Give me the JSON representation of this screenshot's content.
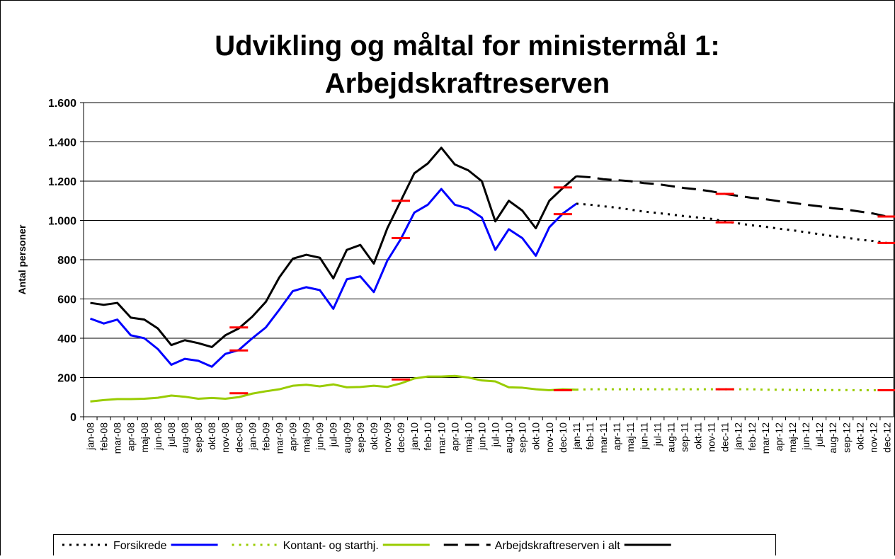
{
  "chart_data": {
    "type": "line",
    "title": [
      "Udvikling og måltal for ministermål 1:",
      "Arbejdskraftreserven"
    ],
    "y_label": "Antal personer",
    "categories": [
      "jan-08",
      "feb-08",
      "mar-08",
      "apr-08",
      "maj-08",
      "jun-08",
      "jul-08",
      "aug-08",
      "sep-08",
      "okt-08",
      "nov-08",
      "dec-08",
      "jan-09",
      "feb-09",
      "mar-09",
      "apr-09",
      "maj-09",
      "jun-09",
      "jul-09",
      "aug-09",
      "sep-09",
      "okt-09",
      "nov-09",
      "dec-09",
      "jan-10",
      "feb-10",
      "mar-10",
      "apr-10",
      "maj-10",
      "jun-10",
      "jul-10",
      "aug-10",
      "sep-10",
      "okt-10",
      "nov-10",
      "dec-10",
      "jan-11",
      "feb-11",
      "mar-11",
      "apr-11",
      "maj-11",
      "jun-11",
      "jul-11",
      "aug-11",
      "sep-11",
      "okt-11",
      "nov-11",
      "dec-11",
      "jan-12",
      "feb-12",
      "mar-12",
      "apr-12",
      "maj-12",
      "jun-12",
      "jul-12",
      "aug-12",
      "sep-12",
      "okt-12",
      "nov-12",
      "dec-12"
    ],
    "ylim": [
      0,
      1600
    ],
    "yticks": [
      0,
      200,
      400,
      600,
      800,
      {
        "value": 1000,
        "label": "1.000"
      },
      {
        "value": 1200,
        "label": "1.200"
      },
      {
        "value": 1400,
        "label": "1.400"
      },
      {
        "value": 1600,
        "label": "1.600"
      }
    ],
    "grid": true,
    "legend": "bottom",
    "series": [
      {
        "name": "Forsikrede",
        "color": "#000000",
        "dash": "dotted",
        "values": [
          null,
          null,
          null,
          null,
          null,
          null,
          null,
          null,
          null,
          null,
          null,
          null,
          null,
          null,
          null,
          null,
          null,
          null,
          null,
          null,
          null,
          null,
          null,
          null,
          null,
          null,
          null,
          null,
          null,
          null,
          null,
          null,
          null,
          null,
          null,
          null,
          1085,
          1080,
          1072,
          1065,
          1055,
          1045,
          1038,
          1030,
          1022,
          1015,
          1008,
          995,
          985,
          975,
          968,
          958,
          950,
          940,
          930,
          920,
          912,
          902,
          895,
          885
        ]
      },
      {
        "color": "#0000ff",
        "dash": "solid",
        "values": [
          500,
          475,
          495,
          415,
          400,
          345,
          265,
          295,
          285,
          255,
          320,
          340,
          400,
          455,
          545,
          640,
          660,
          645,
          550,
          700,
          715,
          635,
          795,
          905,
          1040,
          1080,
          1160,
          1080,
          1060,
          1015,
          850,
          955,
          910,
          820,
          965,
          1035,
          1085,
          null,
          null,
          null,
          null,
          null,
          null,
          null,
          null,
          null,
          null,
          null,
          null,
          null,
          null,
          null,
          null,
          null,
          null,
          null,
          null,
          null,
          null,
          null
        ]
      },
      {
        "name": "Kontant- og starthj.",
        "color": "#99cc00",
        "dash": "dotted",
        "values": [
          null,
          null,
          null,
          null,
          null,
          null,
          null,
          null,
          null,
          null,
          null,
          null,
          null,
          null,
          null,
          null,
          null,
          null,
          null,
          null,
          null,
          null,
          null,
          null,
          null,
          null,
          null,
          null,
          null,
          null,
          null,
          null,
          null,
          null,
          null,
          null,
          138,
          140,
          140,
          140,
          140,
          140,
          140,
          140,
          140,
          140,
          140,
          140,
          140,
          140,
          138,
          138,
          137,
          137,
          136,
          136,
          136,
          135,
          135,
          135
        ]
      },
      {
        "color": "#99cc00",
        "dash": "solid",
        "values": [
          78,
          85,
          90,
          90,
          92,
          97,
          108,
          102,
          92,
          96,
          92,
          100,
          118,
          130,
          140,
          158,
          163,
          155,
          165,
          150,
          152,
          158,
          152,
          170,
          195,
          205,
          205,
          208,
          200,
          185,
          180,
          150,
          148,
          140,
          135,
          140,
          138,
          null,
          null,
          null,
          null,
          null,
          null,
          null,
          null,
          null,
          null,
          null,
          null,
          null,
          null,
          null,
          null,
          null,
          null,
          null,
          null,
          null,
          null,
          null
        ]
      },
      {
        "name": "Arbejdskraftreserven i alt",
        "color": "#000000",
        "dash": "dashed",
        "values": [
          null,
          null,
          null,
          null,
          null,
          null,
          null,
          null,
          null,
          null,
          null,
          null,
          null,
          null,
          null,
          null,
          null,
          null,
          null,
          null,
          null,
          null,
          null,
          null,
          null,
          null,
          null,
          null,
          null,
          null,
          null,
          null,
          null,
          null,
          null,
          null,
          1225,
          1220,
          1210,
          1205,
          1200,
          1190,
          1185,
          1175,
          1165,
          1158,
          1148,
          1135,
          1125,
          1115,
          1108,
          1098,
          1090,
          1080,
          1072,
          1062,
          1055,
          1045,
          1035,
          1020
        ]
      },
      {
        "color": "#000000",
        "dash": "solid",
        "values": [
          580,
          570,
          580,
          505,
          495,
          450,
          365,
          390,
          375,
          355,
          415,
          450,
          510,
          585,
          710,
          805,
          825,
          810,
          705,
          850,
          875,
          780,
          960,
          1100,
          1240,
          1290,
          1370,
          1285,
          1255,
          1200,
          995,
          1100,
          1050,
          960,
          1100,
          1165,
          1225,
          null,
          null,
          null,
          null,
          null,
          null,
          null,
          null,
          null,
          null,
          null,
          null,
          null,
          null,
          null,
          null,
          null,
          null,
          null,
          null,
          null,
          null,
          null
        ]
      },
      {
        "color": "#ff0000",
        "dash": "marker",
        "values": [
          null,
          null,
          null,
          null,
          null,
          null,
          null,
          null,
          null,
          null,
          null,
          455,
          null,
          null,
          null,
          null,
          null,
          null,
          null,
          null,
          null,
          null,
          null,
          1100,
          null,
          null,
          null,
          null,
          null,
          null,
          null,
          null,
          null,
          null,
          null,
          1168,
          null,
          null,
          null,
          null,
          null,
          null,
          null,
          null,
          null,
          null,
          null,
          1135,
          null,
          null,
          null,
          null,
          null,
          null,
          null,
          null,
          null,
          null,
          null,
          1020
        ]
      },
      {
        "color": "#ff0000",
        "dash": "marker",
        "values": [
          null,
          null,
          null,
          null,
          null,
          null,
          null,
          null,
          null,
          null,
          null,
          338,
          null,
          null,
          null,
          null,
          null,
          null,
          null,
          null,
          null,
          null,
          null,
          910,
          null,
          null,
          null,
          null,
          null,
          null,
          null,
          null,
          null,
          null,
          null,
          1032,
          null,
          null,
          null,
          null,
          null,
          null,
          null,
          null,
          null,
          null,
          null,
          990,
          null,
          null,
          null,
          null,
          null,
          null,
          null,
          null,
          null,
          null,
          null,
          885
        ]
      },
      {
        "color": "#ff0000",
        "dash": "marker",
        "values": [
          null,
          null,
          null,
          null,
          null,
          null,
          null,
          null,
          null,
          null,
          null,
          120,
          null,
          null,
          null,
          null,
          null,
          null,
          null,
          null,
          null,
          null,
          null,
          190,
          null,
          null,
          null,
          null,
          null,
          null,
          null,
          null,
          null,
          null,
          null,
          135,
          null,
          null,
          null,
          null,
          null,
          null,
          null,
          null,
          null,
          null,
          null,
          140,
          null,
          null,
          null,
          null,
          null,
          null,
          null,
          null,
          null,
          null,
          null,
          135
        ]
      }
    ]
  }
}
